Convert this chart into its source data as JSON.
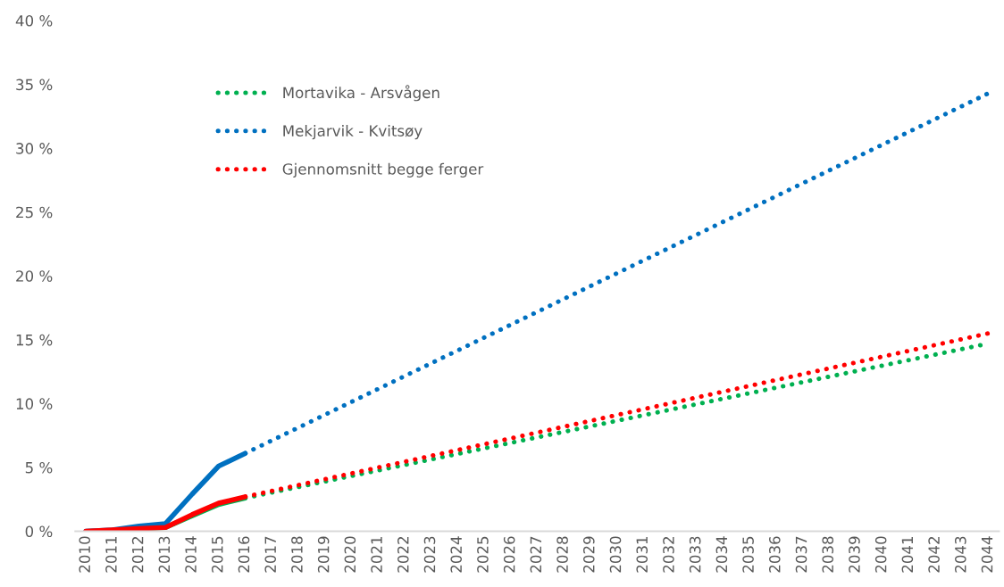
{
  "chart_data": {
    "type": "line",
    "line_style": "solid",
    "marker": "none",
    "grid": false,
    "legend": "top left",
    "xlim": [
      2009.6,
      2044.4
    ],
    "xticks": [
      2010,
      2011,
      2012,
      2013,
      2014,
      2015,
      2016,
      2017,
      2018,
      2019,
      2020,
      2021,
      2022,
      2023,
      2024,
      2025,
      2026,
      2027,
      2028,
      2029,
      2030,
      2031,
      2032,
      2033,
      2034,
      2035,
      2036,
      2037,
      2038,
      2039,
      2040,
      2041,
      2042,
      2043,
      2044
    ],
    "ylim": [
      0,
      40
    ],
    "yticks": [
      {
        "value": 0,
        "label": "0 %"
      },
      {
        "value": 5,
        "label": "5 %"
      },
      {
        "value": 10,
        "label": "10 %"
      },
      {
        "value": 15,
        "label": "15 %"
      },
      {
        "value": 20,
        "label": "20 %"
      },
      {
        "value": 25,
        "label": "25 %"
      },
      {
        "value": 30,
        "label": "30 %"
      },
      {
        "value": 35,
        "label": "35 %"
      },
      {
        "value": 40,
        "label": "40 %"
      }
    ],
    "series": [
      {
        "name": "Mortavika - Arsvågen",
        "color": "#00b050",
        "line_style": "dotted",
        "x": [
          2016,
          2044
        ],
        "values": [
          2.6,
          14.7
        ]
      },
      {
        "name": "Mekjarvik - Kvitsøy",
        "color": "#0070c0",
        "line_style": "dotted",
        "x": [
          2016,
          2044
        ],
        "values": [
          6.1,
          34.3
        ]
      },
      {
        "name": "Gjennomsnitt begge ferger",
        "color": "#ff0000",
        "line_style": "dotted",
        "x": [
          2016,
          2044
        ],
        "values": [
          2.7,
          15.5
        ]
      },
      {
        "color": "#00b050",
        "x": [
          2012,
          2013,
          2014,
          2015,
          2016
        ],
        "values": [
          0.2,
          0.3,
          1.2,
          2.1,
          2.6
        ]
      },
      {
        "color": "#0070c0",
        "x": [
          2010,
          2011,
          2012,
          2013,
          2014,
          2015,
          2016
        ],
        "values": [
          0,
          0.1,
          0.4,
          0.6,
          2.9,
          5.1,
          6.1
        ]
      },
      {
        "color": "#ff0000",
        "x": [
          2010,
          2011,
          2012,
          2013,
          2014,
          2015,
          2016
        ],
        "values": [
          0,
          0.1,
          0.2,
          0.3,
          1.3,
          2.2,
          2.7
        ]
      }
    ]
  }
}
